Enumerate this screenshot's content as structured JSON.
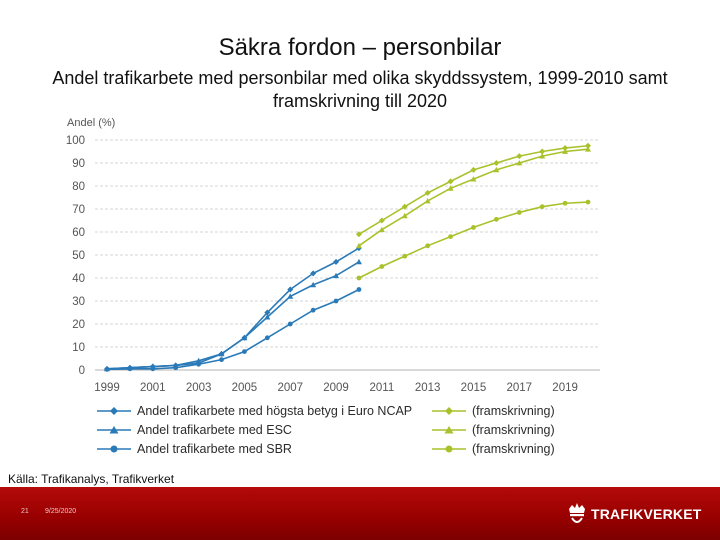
{
  "slide": {
    "title": "Säkra fordon – personbilar",
    "subtitle": "Andel trafikarbete med personbilar med olika skyddssystem, 1999-2010 samt framskrivning till 2020",
    "source": "Källa: Trafikanalys, Trafikverket",
    "slide_number": "21",
    "date": "9/25/2020",
    "brand": "TRAFIKVERKET"
  },
  "colors": {
    "historic": "#2a7ab8",
    "projection": "#a9c22c",
    "footer": "#9a0000"
  },
  "chart_data": {
    "type": "line",
    "title": "",
    "ylabel": "Andel (%)",
    "xlabel": "",
    "xlim": [
      1999,
      2020
    ],
    "ylim": [
      0,
      100
    ],
    "xticks": [
      "1999",
      "2001",
      "2003",
      "2005",
      "2007",
      "2009",
      "2011",
      "2013",
      "2015",
      "2017",
      "2019"
    ],
    "yticks": [
      "0",
      "10",
      "20",
      "30",
      "40",
      "50",
      "60",
      "70",
      "80",
      "90",
      "100"
    ],
    "grid": "horizontal",
    "legend_position": "bottom",
    "series": [
      {
        "name": "Andel trafikarbete med högsta betyg i Euro NCAP",
        "group": "historic",
        "marker": "diamond",
        "x": [
          1999,
          2000,
          2001,
          2002,
          2003,
          2004,
          2005,
          2006,
          2007,
          2008,
          2009,
          2010
        ],
        "values": [
          0.5,
          1,
          1.5,
          2,
          3,
          7,
          14,
          25,
          35,
          42,
          47,
          53
        ]
      },
      {
        "name": "Andel trafikarbete med ESC",
        "group": "historic",
        "marker": "triangle",
        "x": [
          1999,
          2000,
          2001,
          2002,
          2003,
          2004,
          2005,
          2006,
          2007,
          2008,
          2009,
          2010
        ],
        "values": [
          0.5,
          1,
          1.5,
          2,
          4,
          7,
          14,
          23,
          32,
          37,
          41,
          47
        ]
      },
      {
        "name": "Andel trafikarbete med SBR",
        "group": "historic",
        "marker": "circle",
        "x": [
          1999,
          2000,
          2001,
          2002,
          2003,
          2004,
          2005,
          2006,
          2007,
          2008,
          2009,
          2010
        ],
        "values": [
          0.3,
          0.5,
          0.5,
          1,
          2.5,
          4.5,
          8,
          14,
          20,
          26,
          30,
          35
        ]
      },
      {
        "name": "(framskrivning)",
        "group": "projection",
        "marker": "diamond",
        "x": [
          2010,
          2011,
          2012,
          2013,
          2014,
          2015,
          2016,
          2017,
          2018,
          2019,
          2020
        ],
        "values": [
          59,
          65,
          71,
          77,
          82,
          87,
          90,
          93,
          95,
          96.5,
          97.5
        ]
      },
      {
        "name": "(framskrivning)",
        "group": "projection",
        "marker": "triangle",
        "x": [
          2010,
          2011,
          2012,
          2013,
          2014,
          2015,
          2016,
          2017,
          2018,
          2019,
          2020
        ],
        "values": [
          54,
          61,
          67,
          73.5,
          79,
          83,
          87,
          90,
          93,
          95,
          96
        ]
      },
      {
        "name": "(framskrivning)",
        "group": "projection",
        "marker": "circle",
        "x": [
          2010,
          2011,
          2012,
          2013,
          2014,
          2015,
          2016,
          2017,
          2018,
          2019,
          2020
        ],
        "values": [
          40,
          45,
          49.5,
          54,
          58,
          62,
          65.5,
          68.5,
          71,
          72.5,
          73
        ]
      }
    ]
  }
}
